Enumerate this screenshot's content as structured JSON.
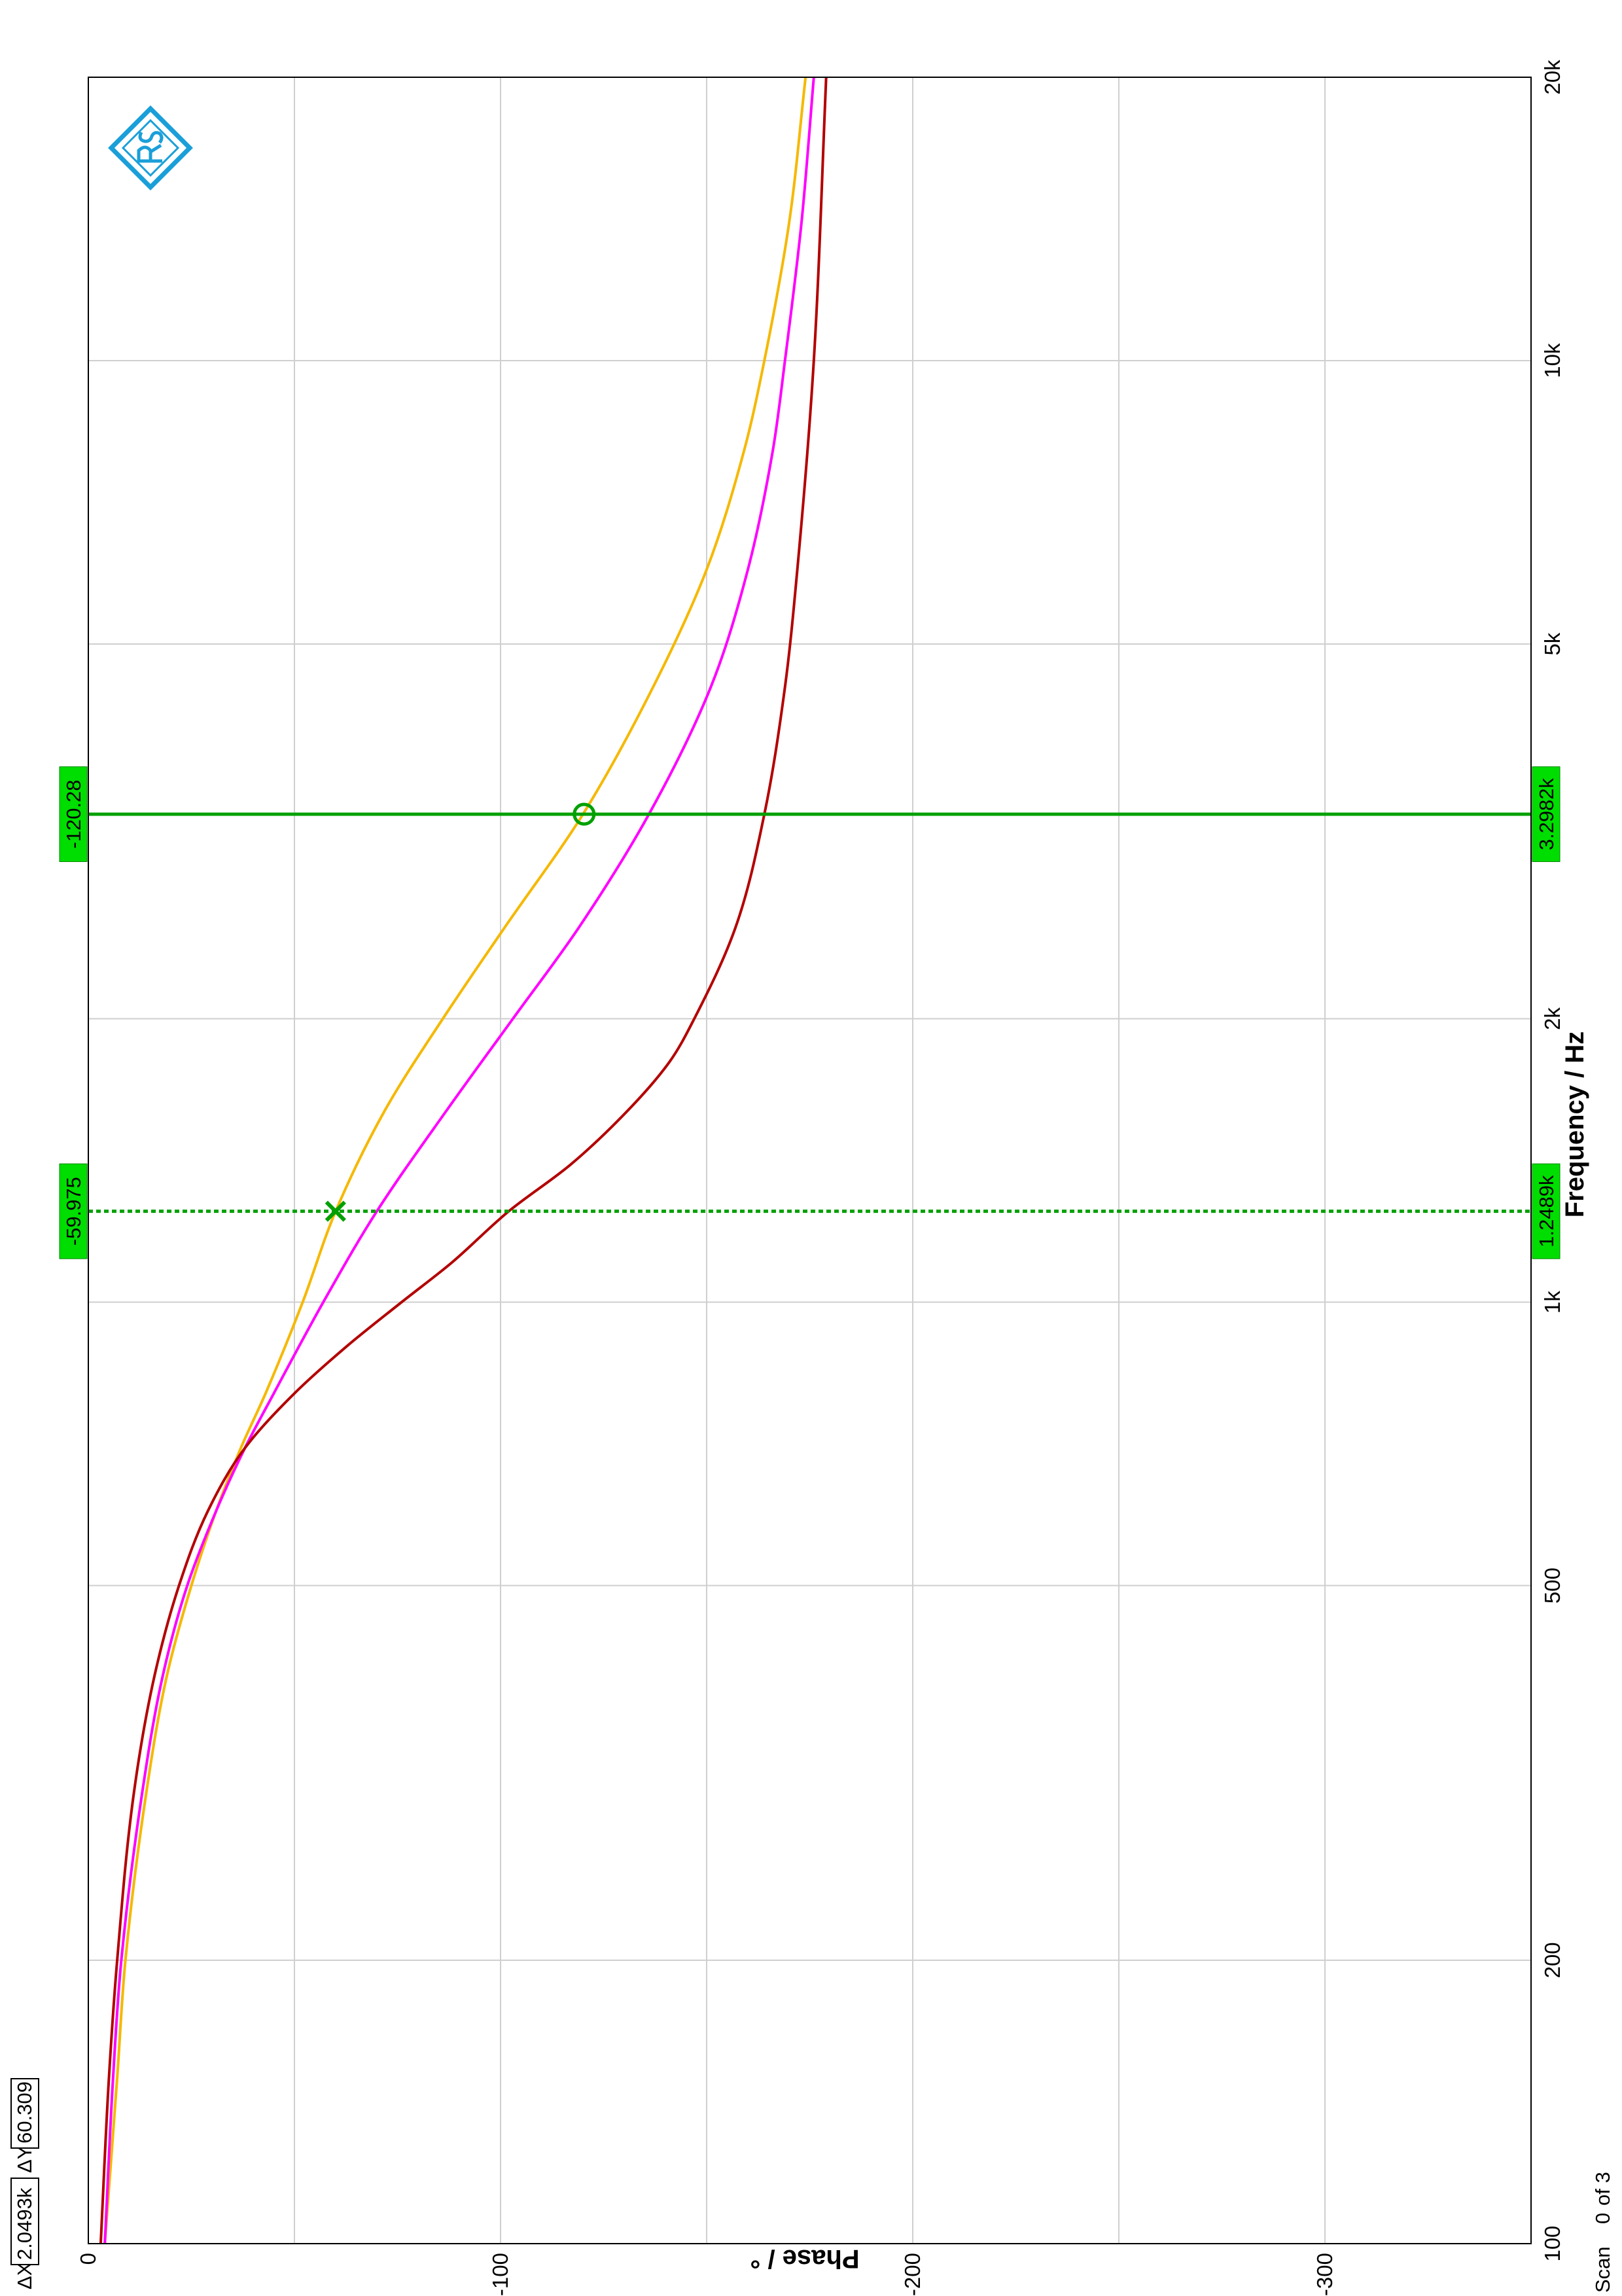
{
  "chart_data": {
    "type": "line",
    "xlabel": "Frequency / Hz",
    "ylabel": "Phase / °",
    "x_scale": "log",
    "xlim": [
      100,
      20000
    ],
    "ylim": [
      -350,
      0
    ],
    "grid": true,
    "x_ticks": [
      {
        "value": 100,
        "label": "100"
      },
      {
        "value": 200,
        "label": "200"
      },
      {
        "value": 500,
        "label": "500"
      },
      {
        "value": 1000,
        "label": "1k"
      },
      {
        "value": 2000,
        "label": "2k"
      },
      {
        "value": 5000,
        "label": "5k"
      },
      {
        "value": 10000,
        "label": "10k"
      },
      {
        "value": 20000,
        "label": "20k"
      }
    ],
    "y_ticks": [
      {
        "value": 0,
        "label": "0"
      },
      {
        "value": -100,
        "label": "-100"
      },
      {
        "value": -200,
        "label": "-200"
      },
      {
        "value": -300,
        "label": "-300"
      }
    ],
    "y_minor_grid": [
      -50,
      -150,
      -250
    ],
    "series": [
      {
        "color": "#f5b800",
        "x": [
          100,
          150,
          200,
          300,
          400,
          500,
          600,
          700,
          800,
          1000,
          1249,
          1600,
          2000,
          2500,
          3298,
          4500,
          6000,
          8000,
          10000,
          14000,
          20000
        ],
        "y": [
          -4,
          -7,
          -9,
          -14,
          -19,
          -25,
          -31,
          -37,
          -43,
          -52,
          -60,
          -72,
          -86,
          -101,
          -120,
          -137,
          -150,
          -159,
          -164,
          -170,
          -174
        ]
      },
      {
        "color": "#ff00ff",
        "x": [
          100,
          150,
          200,
          300,
          400,
          500,
          600,
          700,
          800,
          1000,
          1249,
          1600,
          2000,
          2500,
          3298,
          4500,
          6000,
          8000,
          10000,
          14000,
          20000
        ],
        "y": [
          -4,
          -6,
          -8,
          -13,
          -18,
          -24,
          -31,
          -38,
          -45,
          -57,
          -70,
          -87,
          -103,
          -119,
          -136,
          -151,
          -160,
          -166,
          -169,
          -173,
          -176
        ]
      },
      {
        "color": "#b30000",
        "x": [
          100,
          150,
          200,
          300,
          400,
          500,
          600,
          700,
          800,
          900,
          1000,
          1100,
          1249,
          1400,
          1600,
          1800,
          2000,
          2500,
          3298,
          4500,
          6000,
          10000,
          20000
        ],
        "y": [
          -3,
          -5,
          -7,
          -11,
          -16,
          -22,
          -29,
          -38,
          -50,
          -63,
          -76,
          -88,
          -102,
          -117,
          -131,
          -141,
          -147,
          -157,
          -164,
          -169,
          -172,
          -176,
          -179
        ]
      }
    ],
    "markers": [
      {
        "x": 1248.9,
        "y": -59.975,
        "x_label": "1.2489k",
        "y_label": "-59.975",
        "style": "dotted",
        "symbol": "x",
        "color": "#00a000"
      },
      {
        "x": 3298.2,
        "y": -120.28,
        "x_label": "3.2982k",
        "y_label": "-120.28",
        "style": "solid",
        "symbol": "o",
        "color": "#00a000"
      }
    ],
    "delta": {
      "dx_label": "ΔX",
      "dx": "2.0493k",
      "dy_label": "ΔY",
      "dy": "60.309"
    },
    "scan": {
      "label": "Scan",
      "index": "0",
      "of": "of 3"
    },
    "label_box_color": "#00dd00",
    "logo_color": "#1a9fd9"
  }
}
